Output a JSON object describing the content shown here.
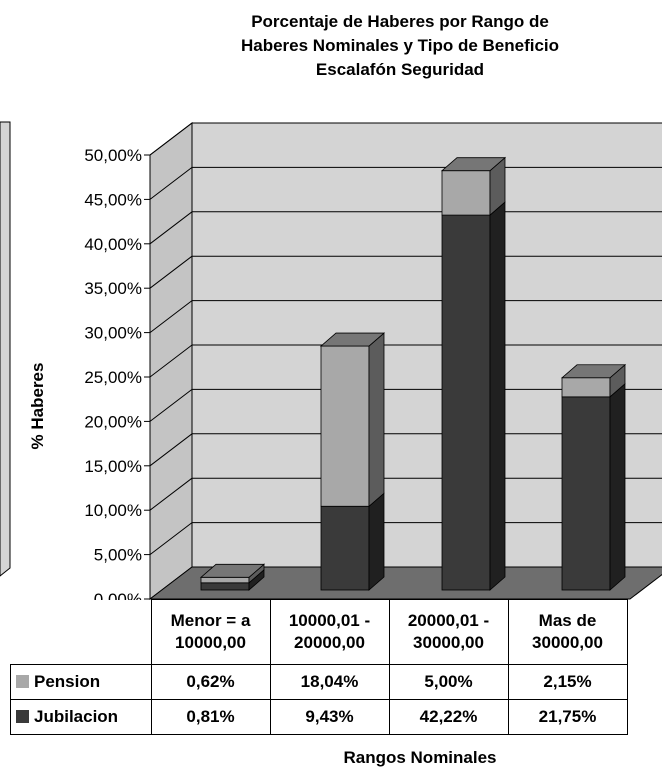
{
  "colors": {
    "pension": "#a8a8a8",
    "jubilacion": "#3a3a3a",
    "wall": "#d4d4d4",
    "floor": "#6e6e6e"
  },
  "chart_data": {
    "type": "bar",
    "stacked": true,
    "three_d": true,
    "title_lines": [
      "Porcentaje de Haberes por Rango de",
      "Haberes Nominales y Tipo de Beneficio",
      "Escalafón Seguridad"
    ],
    "xlabel": "Rangos Nominales",
    "ylabel": "% Haberes",
    "ylim": [
      0,
      50
    ],
    "ytick_labels": [
      "0,00%",
      "5,00%",
      "10,00%",
      "15,00%",
      "20,00%",
      "25,00%",
      "30,00%",
      "35,00%",
      "40,00%",
      "45,00%",
      "50,00%"
    ],
    "categories": [
      [
        "Menor = a",
        "10000,00"
      ],
      [
        "10000,01 -",
        "20000,00"
      ],
      [
        "20000,01 -",
        "30000,00"
      ],
      [
        "Mas de",
        "30000,00"
      ]
    ],
    "series": [
      {
        "name": "Jubilacion",
        "values": [
          0.81,
          9.43,
          42.22,
          21.75
        ],
        "labels": [
          "0,81%",
          "9,43%",
          "42,22%",
          "21,75%"
        ]
      },
      {
        "name": "Pension",
        "values": [
          0.62,
          18.04,
          5.0,
          2.15
        ],
        "labels": [
          "0,62%",
          "18,04%",
          "5,00%",
          "2,15%"
        ]
      }
    ],
    "grid": true,
    "legend": "data-table"
  }
}
